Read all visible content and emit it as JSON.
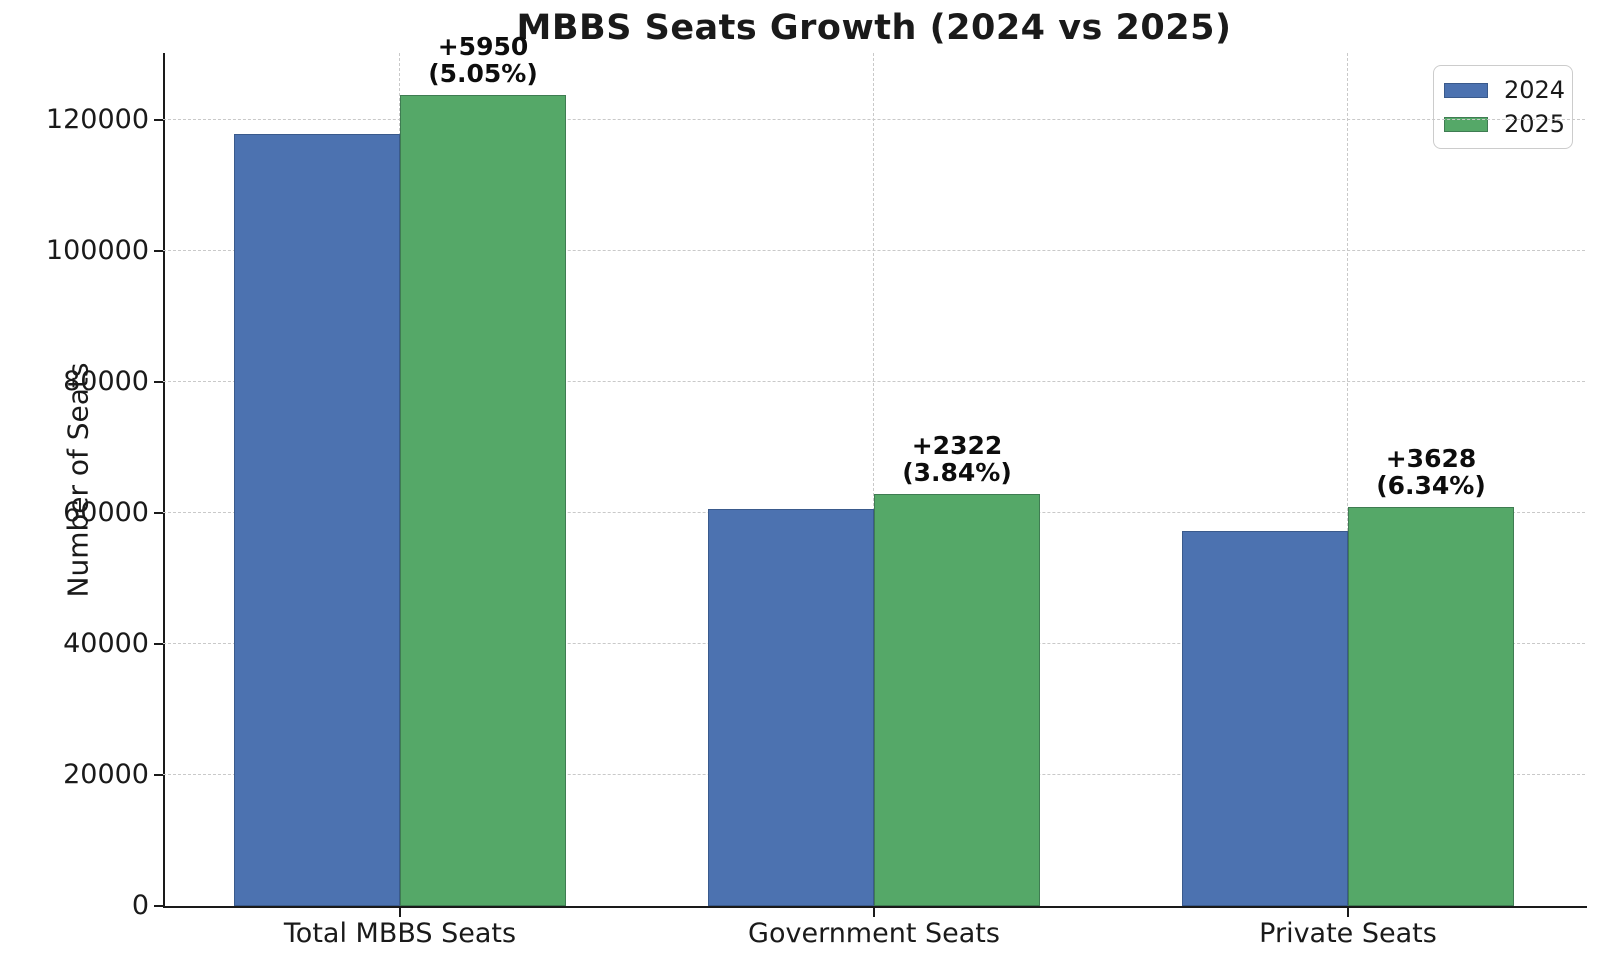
{
  "chart_data": {
    "type": "bar",
    "title": "MBBS Seats Growth (2024 vs 2025)",
    "ylabel": "Number of Seats",
    "xlabel": "",
    "categories": [
      "Total MBBS Seats",
      "Government Seats",
      "Private Seats"
    ],
    "series": [
      {
        "name": "2024",
        "color": "#4C72B0",
        "edge_color": "#3A5A8C",
        "values": [
          117750,
          60522,
          57228
        ]
      },
      {
        "name": "2025",
        "color": "#55A868",
        "edge_color": "#3F7C52",
        "values": [
          123700,
          62844,
          60856
        ]
      }
    ],
    "annotations": [
      {
        "delta": "+5950",
        "percent": "(5.05%)"
      },
      {
        "delta": "+2322",
        "percent": "(3.84%)"
      },
      {
        "delta": "+3628",
        "percent": "(6.34%)"
      }
    ],
    "yticks": [
      0,
      20000,
      40000,
      60000,
      80000,
      100000,
      120000
    ],
    "ylim": [
      0,
      130150
    ],
    "bar_width_fraction": 0.35,
    "grid": "dashed",
    "legend": {
      "position": "upper right",
      "entries": [
        "2024",
        "2025"
      ]
    },
    "colors": {
      "grid": "#c9c9c9",
      "axis": "#1a1a1a",
      "text": "#1a1a1a"
    }
  }
}
